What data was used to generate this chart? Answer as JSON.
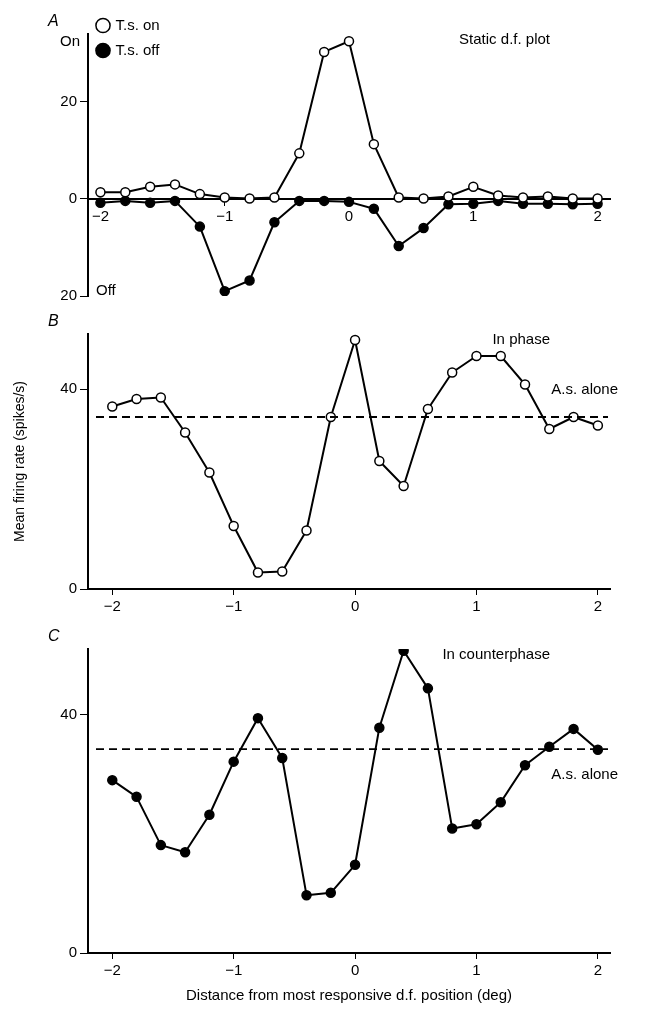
{
  "chart_data": [
    {
      "type": "line",
      "title": "A",
      "subtitle": "Static d.f. plot",
      "annotations": [
        "On",
        "Off"
      ],
      "x": [
        -2,
        -1.8,
        -1.6,
        -1.4,
        -1.2,
        -1,
        -0.8,
        -0.6,
        -0.4,
        -0.2,
        0,
        0.2,
        0.4,
        0.6,
        0.8,
        1,
        1.2,
        1.4,
        1.6,
        1.8,
        2
      ],
      "series": [
        {
          "name": "T.s. on",
          "color": "#ffffff",
          "values": [
            1.4,
            1.4,
            2.5,
            3,
            1,
            0.3,
            0.1,
            0.3,
            9.4,
            30.3,
            32.5,
            11.3,
            0.3,
            0.1,
            0.5,
            2.5,
            0.7,
            0.3,
            0.5,
            0.1,
            0.1
          ]
        },
        {
          "name": "T.s. off",
          "color": "#000000",
          "values": [
            -0.8,
            -0.4,
            -0.8,
            -0.4,
            -5.7,
            -19,
            -16.8,
            -4.8,
            -0.4,
            -0.4,
            -0.6,
            -2,
            -9.7,
            -6,
            -1.1,
            -1,
            -0.4,
            -1,
            -1,
            -1.1,
            -1
          ]
        }
      ],
      "xlim": [
        -2.1,
        2.1
      ],
      "xticks": [
        -2,
        -1,
        0,
        1,
        2
      ],
      "ylim": [
        -20,
        34
      ],
      "yticks": [
        {
          "value": -20,
          "label": "20"
        },
        0,
        20
      ],
      "grid": false,
      "legend": "top left",
      "marker": "circle",
      "line_style": "solid"
    },
    {
      "type": "line",
      "title": "B",
      "subtitle": "In phase",
      "ylabel": "Mean firing rate (spikes/s)",
      "x": [
        -2,
        -1.8,
        -1.6,
        -1.4,
        -1.2,
        -1,
        -0.8,
        -0.6,
        -0.4,
        -0.2,
        0,
        0.2,
        0.4,
        0.6,
        0.8,
        1,
        1.2,
        1.4,
        1.6,
        1.8,
        2
      ],
      "series": [
        {
          "color": "#ffffff",
          "values": [
            36.5,
            38,
            38.3,
            31.3,
            23.3,
            12.6,
            3.3,
            3.5,
            11.7,
            34.4,
            49.8,
            25.6,
            20.6,
            36,
            43.3,
            46.6,
            46.6,
            40.9,
            32,
            34.4,
            32.7
          ]
        }
      ],
      "ref_lines": [
        {
          "axis": "y",
          "value": 34.4,
          "label": "A.s. alone",
          "line_style": "dashed"
        }
      ],
      "xlim": [
        -2.2,
        2.1
      ],
      "xticks": [
        -2,
        -1,
        0,
        1,
        2
      ],
      "ylim": [
        0,
        51
      ],
      "yticks": [
        0,
        40
      ],
      "grid": false,
      "marker": "circle",
      "line_style": "solid"
    },
    {
      "type": "line",
      "title": "C",
      "subtitle": "In counterphase",
      "xlabel": "Distance from most responsive d.f. position (deg)",
      "x": [
        -2,
        -1.8,
        -1.6,
        -1.4,
        -1.2,
        -1,
        -0.8,
        -0.6,
        -0.4,
        -0.2,
        0,
        0.2,
        0.4,
        0.6,
        0.8,
        1,
        1.2,
        1.4,
        1.6,
        1.8,
        2
      ],
      "series": [
        {
          "color": "#000000",
          "values": [
            29,
            26.2,
            18.1,
            16.9,
            23.2,
            32.1,
            39.4,
            32.7,
            9.7,
            10.1,
            14.8,
            37.8,
            50.7,
            44.4,
            20.9,
            21.6,
            25.3,
            31.5,
            34.6,
            37.6,
            34.1
          ]
        }
      ],
      "ref_lines": [
        {
          "axis": "y",
          "value": 34.2,
          "label": "A.s. alone",
          "line_style": "dashed"
        }
      ],
      "xlim": [
        -2.2,
        2.1
      ],
      "xticks": [
        -2,
        -1,
        0,
        1,
        2
      ],
      "ylim": [
        0,
        51
      ],
      "yticks": [
        0,
        40
      ],
      "grid": false,
      "marker": "circle",
      "line_style": "solid"
    }
  ]
}
